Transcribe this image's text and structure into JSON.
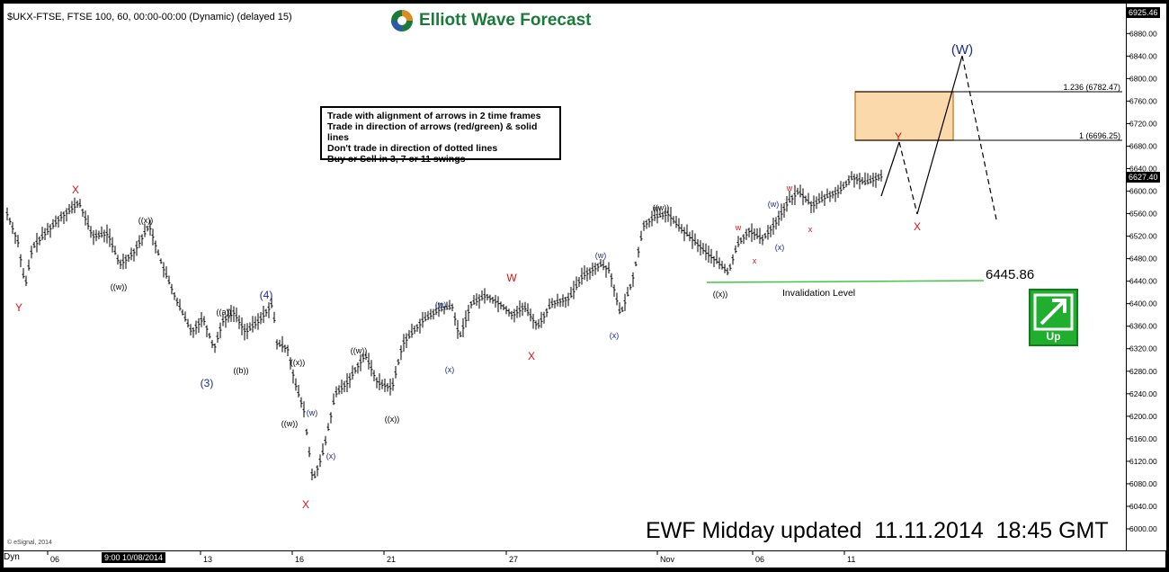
{
  "header": {
    "symbol_line": "$UKX-FTSE, FTSE 100, 60, 00:00-00:00 (Dynamic) (delayed 15)"
  },
  "logo": {
    "text": "Elliott Wave Forecast",
    "icon": "globe-logo-icon"
  },
  "rules": [
    "Trade with alignment of arrows in 2 time frames",
    "Trade in direction of arrows (red/green) & solid lines",
    "Don't trade in direction of dotted lines",
    "Buy or Sell in 3, 7 or 11 swings"
  ],
  "footer": {
    "text": "EWF Midday updated  11.11.2014  18:45 GMT",
    "copyright": "© eSignal, 2014"
  },
  "invalidation": {
    "label": "Invalidation Level",
    "value": "6445.86"
  },
  "signal": {
    "label": "Up",
    "icon": "arrow-up-right-icon",
    "color": "#1fae2d"
  },
  "fib": {
    "level1": "1.236 (6782.47)",
    "level2": "1 (6696.25)"
  },
  "price_tags": {
    "top": "6925.46",
    "current": "6627.40"
  },
  "xaxis": {
    "dyn": "Dyn",
    "date_box": "9:00 10/08/2014",
    "ticks": [
      "06",
      "13",
      "16",
      "21",
      "27",
      "Nov",
      "06",
      "11"
    ]
  },
  "chart_data": {
    "type": "ohlc",
    "title": "$UKX-FTSE, FTSE 100, 60, 00:00-00:00 (Dynamic) (delayed 15)",
    "xlabel": "",
    "ylabel": "",
    "ylim": [
      6000,
      6925.46
    ],
    "y_ticks": [
      6000,
      6040,
      6080,
      6120,
      6160,
      6200,
      6240,
      6280,
      6320,
      6360,
      6400,
      6440,
      6480,
      6520,
      6560,
      6600,
      6640,
      6680,
      6720,
      6760,
      6800,
      6840,
      6880
    ],
    "x_ticks": [
      "06",
      "13",
      "16",
      "21",
      "27",
      "Nov",
      "06",
      "11"
    ],
    "price_path": [
      [
        0,
        6560
      ],
      [
        12,
        6510
      ],
      [
        20,
        6430
      ],
      [
        28,
        6500
      ],
      [
        45,
        6530
      ],
      [
        60,
        6555
      ],
      [
        80,
        6580
      ],
      [
        95,
        6520
      ],
      [
        112,
        6525
      ],
      [
        125,
        6470
      ],
      [
        140,
        6490
      ],
      [
        158,
        6540
      ],
      [
        172,
        6470
      ],
      [
        190,
        6400
      ],
      [
        205,
        6350
      ],
      [
        218,
        6375
      ],
      [
        230,
        6320
      ],
      [
        240,
        6370
      ],
      [
        252,
        6385
      ],
      [
        265,
        6350
      ],
      [
        280,
        6370
      ],
      [
        295,
        6400
      ],
      [
        300,
        6330
      ],
      [
        312,
        6320
      ],
      [
        320,
        6260
      ],
      [
        330,
        6210
      ],
      [
        340,
        6085
      ],
      [
        352,
        6140
      ],
      [
        365,
        6240
      ],
      [
        378,
        6260
      ],
      [
        398,
        6310
      ],
      [
        412,
        6260
      ],
      [
        428,
        6250
      ],
      [
        440,
        6330
      ],
      [
        462,
        6370
      ],
      [
        480,
        6390
      ],
      [
        495,
        6395
      ],
      [
        503,
        6340
      ],
      [
        516,
        6400
      ],
      [
        532,
        6415
      ],
      [
        548,
        6400
      ],
      [
        562,
        6380
      ],
      [
        575,
        6395
      ],
      [
        590,
        6360
      ],
      [
        605,
        6400
      ],
      [
        625,
        6410
      ],
      [
        640,
        6450
      ],
      [
        660,
        6470
      ],
      [
        670,
        6460
      ],
      [
        682,
        6380
      ],
      [
        695,
        6440
      ],
      [
        708,
        6540
      ],
      [
        720,
        6555
      ],
      [
        735,
        6560
      ],
      [
        748,
        6535
      ],
      [
        762,
        6515
      ],
      [
        778,
        6490
      ],
      [
        790,
        6475
      ],
      [
        802,
        6455
      ],
      [
        812,
        6505
      ],
      [
        825,
        6530
      ],
      [
        840,
        6515
      ],
      [
        855,
        6545
      ],
      [
        868,
        6580
      ],
      [
        880,
        6600
      ],
      [
        895,
        6575
      ],
      [
        910,
        6590
      ],
      [
        925,
        6600
      ],
      [
        940,
        6625
      ],
      [
        955,
        6615
      ],
      [
        972,
        6627
      ]
    ],
    "wave_labels": [
      {
        "text": "X",
        "color": "#d11"
      },
      {
        "text": "Y",
        "color": "#d11"
      },
      {
        "text": "((w))",
        "color": "#000"
      },
      {
        "text": "((x))",
        "color": "#000"
      },
      {
        "text": "((a))",
        "color": "#000"
      },
      {
        "text": "((b))",
        "color": "#000"
      },
      {
        "text": "(3)",
        "color": "#1a2b8c"
      },
      {
        "text": "(4)",
        "color": "#1a2b8c"
      },
      {
        "text": "((x))",
        "color": "#000"
      },
      {
        "text": "((w))",
        "color": "#000"
      },
      {
        "text": "X",
        "color": "#d11"
      },
      {
        "text": "(w)",
        "color": "#1a2b8c"
      },
      {
        "text": "(x)",
        "color": "#1a2b8c"
      },
      {
        "text": "((w))",
        "color": "#000"
      },
      {
        "text": "((x))",
        "color": "#000"
      },
      {
        "text": "(w)",
        "color": "#1a2b8c"
      },
      {
        "text": "(x)",
        "color": "#1a2b8c"
      },
      {
        "text": "W",
        "color": "#d11"
      },
      {
        "text": "X",
        "color": "#d11"
      },
      {
        "text": "(w)",
        "color": "#1a2b8c"
      },
      {
        "text": "(x)",
        "color": "#1a2b8c"
      },
      {
        "text": "((w))",
        "color": "#000"
      },
      {
        "text": "((x))",
        "color": "#000"
      },
      {
        "text": "w",
        "color": "#d11"
      },
      {
        "text": "x",
        "color": "#d11"
      },
      {
        "text": "(w)",
        "color": "#1a2b8c"
      },
      {
        "text": "(x)",
        "color": "#1a2b8c"
      },
      {
        "text": "w",
        "color": "#d11"
      },
      {
        "text": "x",
        "color": "#d11"
      },
      {
        "text": "Y",
        "color": "#d11"
      },
      {
        "text": "X",
        "color": "#d11"
      },
      {
        "text": "(W)",
        "color": "#1a2b8c"
      }
    ]
  }
}
